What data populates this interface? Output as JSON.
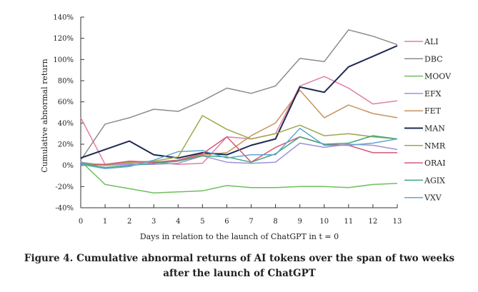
{
  "chart_data": {
    "type": "line",
    "x": [
      0,
      1,
      2,
      3,
      4,
      5,
      6,
      7,
      8,
      9,
      10,
      11,
      12,
      13
    ],
    "xlabel": "Days in relation to the launch of ChatGPT in t = 0",
    "ylabel": "Cumulative abnormal return",
    "ylim": [
      -40,
      140
    ],
    "xlim": [
      0,
      13
    ],
    "yticks": [
      -40,
      -20,
      0,
      20,
      40,
      60,
      80,
      100,
      120,
      140
    ],
    "ytick_labels": [
      "-40%",
      "-20%",
      "0%",
      "20%",
      "40%",
      "60%",
      "80%",
      "100%",
      "120%",
      "140%"
    ],
    "xtick_labels": [
      "0",
      "1",
      "2",
      "3",
      "4",
      "5",
      "6",
      "7",
      "8",
      "9",
      "10",
      "11",
      "12",
      "13"
    ],
    "grid": false,
    "legend_position": "right",
    "series": [
      {
        "name": "ALI",
        "color": "#e07fa7",
        "values": [
          45,
          1,
          2,
          3,
          1,
          2,
          27,
          25,
          30,
          75,
          84,
          73,
          58,
          61
        ]
      },
      {
        "name": "DBC",
        "color": "#8c8c8c",
        "values": [
          5,
          39,
          45,
          53,
          51,
          61,
          73,
          68,
          75,
          101,
          98,
          128,
          122,
          114
        ]
      },
      {
        "name": "MOOV",
        "color": "#6dbf5e",
        "values": [
          4,
          -18,
          -22,
          -26,
          -25,
          -24,
          -19,
          -21,
          -21,
          -20,
          -20,
          -21,
          -18,
          -17
        ]
      },
      {
        "name": "EFX",
        "color": "#a08fd8",
        "values": [
          3,
          0,
          1,
          1,
          2,
          9,
          3,
          2,
          3,
          21,
          17,
          20,
          19,
          15
        ]
      },
      {
        "name": "FET",
        "color": "#c7935e",
        "values": [
          2,
          0,
          4,
          3,
          4,
          10,
          12,
          28,
          40,
          71,
          45,
          57,
          49,
          45
        ]
      },
      {
        "name": "MAN",
        "color": "#1d2b4f",
        "values": [
          7,
          15,
          23,
          10,
          7,
          12,
          10,
          19,
          25,
          74,
          69,
          93,
          103,
          113
        ]
      },
      {
        "name": "NMR",
        "color": "#9ba84c",
        "values": [
          2,
          1,
          3,
          4,
          8,
          47,
          34,
          25,
          30,
          38,
          28,
          30,
          27,
          25
        ]
      },
      {
        "name": "ORAI",
        "color": "#d65878",
        "values": [
          0,
          1,
          4,
          3,
          5,
          11,
          27,
          3,
          17,
          27,
          20,
          19,
          12,
          12
        ]
      },
      {
        "name": "AGIX",
        "color": "#3fa77a",
        "values": [
          2,
          -2,
          0,
          2,
          4,
          9,
          8,
          3,
          11,
          27,
          20,
          21,
          28,
          25
        ]
      },
      {
        "name": "VXV",
        "color": "#5fa5d2",
        "values": [
          1,
          -3,
          -1,
          5,
          13,
          14,
          7,
          10,
          10,
          35,
          19,
          19,
          21,
          25
        ]
      }
    ]
  },
  "caption": {
    "line1": "Figure 4. Cumulative abnormal returns of AI tokens over the span of two weeks",
    "line2": "after the launch of ChatGPT"
  }
}
